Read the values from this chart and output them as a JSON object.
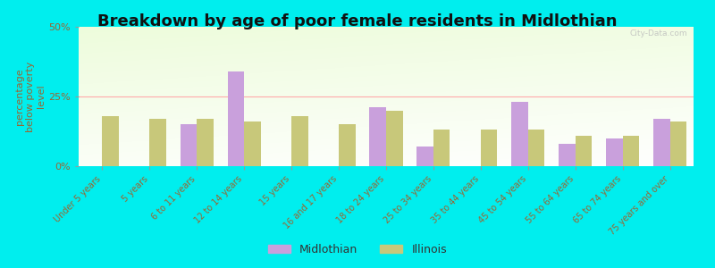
{
  "title": "Breakdown by age of poor female residents in Midlothian",
  "ylabel": "percentage\nbelow poverty\nlevel",
  "categories": [
    "Under 5 years",
    "5 years",
    "6 to 11 years",
    "12 to 14 years",
    "15 years",
    "16 and 17 years",
    "18 to 24 years",
    "25 to 34 years",
    "35 to 44 years",
    "45 to 54 years",
    "55 to 64 years",
    "65 to 74 years",
    "75 years and over"
  ],
  "midlothian": [
    0,
    0,
    15,
    34,
    0,
    0,
    21,
    7,
    0,
    23,
    8,
    10,
    17
  ],
  "illinois": [
    18,
    17,
    17,
    16,
    18,
    15,
    20,
    13,
    13,
    13,
    11,
    11,
    16
  ],
  "midlothian_color": "#c9a0dc",
  "illinois_color": "#c8c87a",
  "outer_background": "#00eeee",
  "ylim": [
    0,
    50
  ],
  "yticks": [
    0,
    25,
    50
  ],
  "ytick_labels": [
    "0%",
    "25%",
    "50%"
  ],
  "bar_width": 0.35,
  "title_fontsize": 13,
  "tick_fontsize": 7,
  "ylabel_fontsize": 8,
  "legend_labels": [
    "Midlothian",
    "Illinois"
  ],
  "watermark": "City-Data.com",
  "grid_color": "#ffcccc",
  "tick_color": "#996633"
}
